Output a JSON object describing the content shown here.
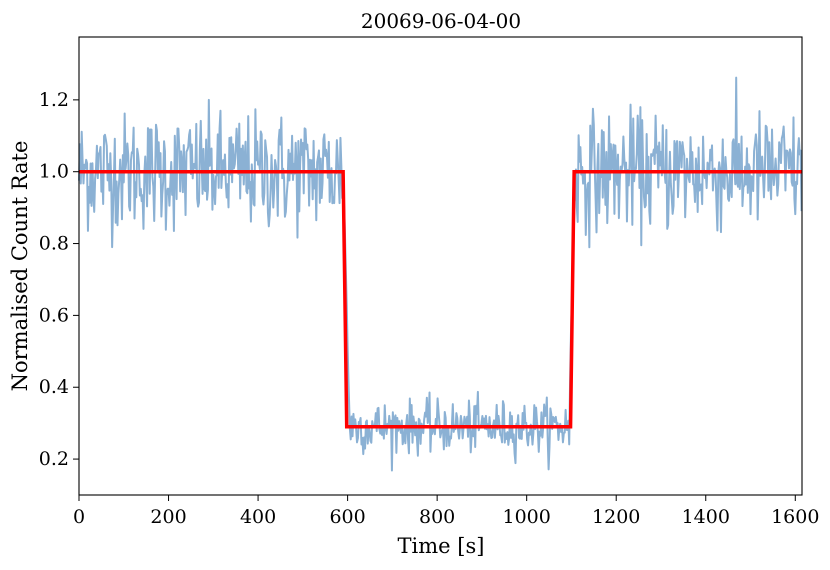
{
  "chart_data": {
    "type": "line",
    "title": "20069-06-04-00",
    "xlabel": "Time [s]",
    "ylabel": "Normalised Count Rate",
    "xlim": [
      0,
      1615
    ],
    "ylim": [
      0.1,
      1.375
    ],
    "xticks": [
      0,
      200,
      400,
      600,
      800,
      1000,
      1200,
      1400,
      1600
    ],
    "yticks": [
      0.2,
      0.4,
      0.6,
      0.8,
      1.0,
      1.2
    ],
    "ytick_labels": [
      "0.2",
      "0.4",
      "0.6",
      "0.8",
      "1.0",
      "1.2"
    ],
    "grid": false,
    "series": [
      {
        "kind": "data",
        "color": "#8bb1d4",
        "dt": 2,
        "segments": [
          {
            "x_start": 0,
            "x_end": 590,
            "level": 1.0,
            "scatter": 0.08
          },
          {
            "x_start": 590,
            "x_end": 605,
            "level_start": 1.0,
            "level_end": 0.29,
            "scatter": 0.05
          },
          {
            "x_start": 605,
            "x_end": 1095,
            "level": 0.29,
            "scatter": 0.035
          },
          {
            "x_start": 1095,
            "x_end": 1108,
            "level_start": 0.29,
            "level_end": 1.0,
            "scatter": 0.05
          },
          {
            "x_start": 1108,
            "x_end": 1615,
            "level": 1.0,
            "scatter": 0.08
          }
        ]
      },
      {
        "kind": "model",
        "color": "#ff0000",
        "x": [
          0,
          590,
          598,
          1098,
          1106,
          1615
        ],
        "y": [
          1.0,
          1.0,
          0.29,
          0.29,
          1.0,
          1.0
        ]
      }
    ]
  }
}
